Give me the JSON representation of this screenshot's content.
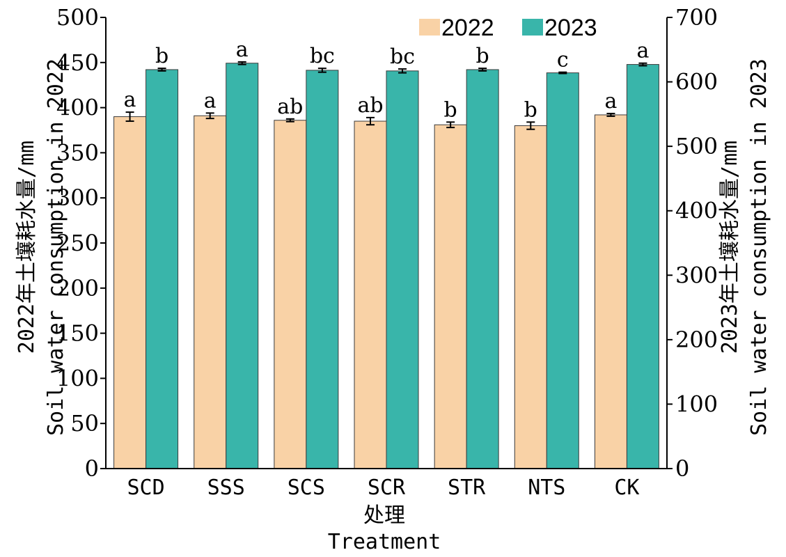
{
  "chart_data": {
    "type": "bar",
    "categories": [
      "SCD",
      "SSS",
      "SCS",
      "SCR",
      "STR",
      "NTS",
      "CK"
    ],
    "series": [
      {
        "name": "2022",
        "axis": "left",
        "color": "#f9d2a6",
        "values": [
          390,
          391,
          386,
          385,
          381,
          380,
          392
        ],
        "errors": [
          5,
          3,
          1.5,
          4,
          3,
          4,
          1.5
        ],
        "letters": [
          "a",
          "a",
          "ab",
          "ab",
          "b",
          "b",
          "a"
        ]
      },
      {
        "name": "2023",
        "axis": "right",
        "color": "#39b5aa",
        "values": [
          619,
          629,
          618,
          617,
          619,
          614,
          627
        ],
        "errors": [
          2,
          2,
          3,
          3,
          2,
          1,
          2
        ],
        "letters": [
          "b",
          "a",
          "bc",
          "bc",
          "b",
          "c",
          "a"
        ]
      }
    ],
    "y_left": {
      "label_line1": "2022年土壤耗水量/mm",
      "label_line2": "Soil water consumption in 2022",
      "ylim": [
        0,
        500
      ],
      "ticks": [
        "0",
        "50",
        "100",
        "150",
        "200",
        "250",
        "300",
        "350",
        "400",
        "450",
        "500"
      ]
    },
    "y_right": {
      "label_line1": "2023年土壤耗水量/mm",
      "label_line2": "Soil water consumption in 2023",
      "ylim": [
        0,
        700
      ],
      "ticks": [
        "0",
        "100",
        "200",
        "300",
        "400",
        "500",
        "600",
        "700"
      ]
    },
    "x_axis": {
      "label_line1": "处理",
      "label_line2": "Treatment"
    },
    "legend": {
      "placement": "top-right",
      "items": [
        "2022",
        "2023"
      ]
    },
    "grid": false
  }
}
